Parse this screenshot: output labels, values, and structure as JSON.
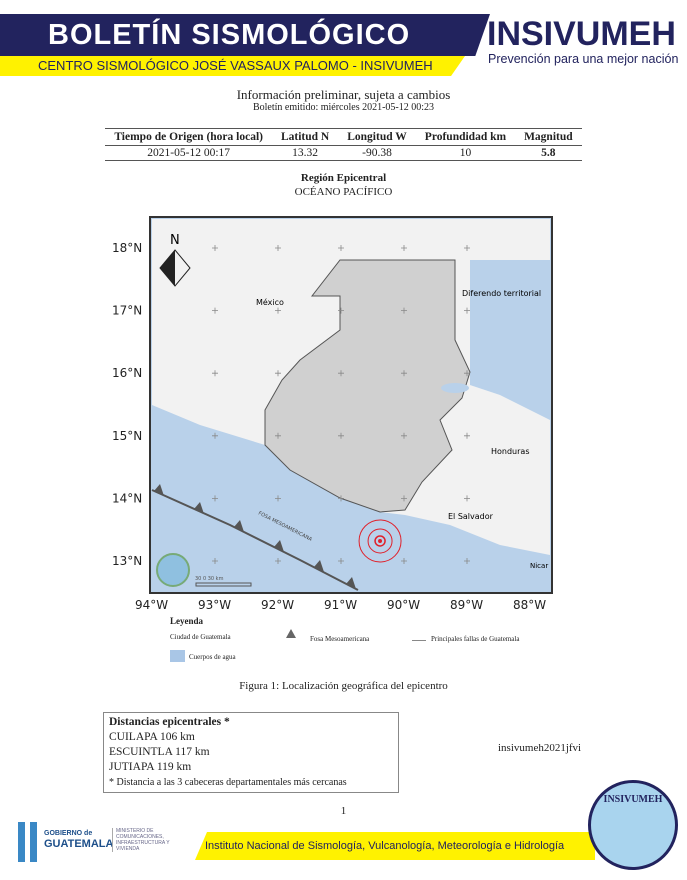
{
  "header": {
    "title": "BOLETÍN SISMOLÓGICO",
    "subtitle": "CENTRO SISMOLÓGICO JOSÉ VASSAUX PALOMO - INSIVUMEH",
    "brand": "INSIVUMEH",
    "tagline": "Prevención para una mejor nación"
  },
  "info": {
    "notice": "Información preliminar, sujeta a cambios",
    "issued": "Boletín emitido:  miércoles 2021-05-12 00:23"
  },
  "table": {
    "headers": [
      "Tiempo de Origen (hora local)",
      "Latitud N",
      "Longitud W",
      "Profundidad km",
      "Magnitud"
    ],
    "row": [
      "2021-05-12 00:17",
      "13.32",
      "-90.38",
      "10",
      "5.8"
    ]
  },
  "region": {
    "label": "Región Epicentral",
    "value": "OCÉANO PACÍFICO"
  },
  "map": {
    "lat_ticks": [
      "18°N",
      "17°N",
      "16°N",
      "15°N",
      "14°N",
      "13°N"
    ],
    "lon_ticks": [
      "94°W",
      "93°W",
      "92°W",
      "91°W",
      "90°W",
      "89°W",
      "88°W"
    ],
    "labels": {
      "north": "N",
      "mexico": "México",
      "diferendo": "Diferendo territorial",
      "honduras": "Honduras",
      "salvador": "El Salvador",
      "nicaragua": "Nicar",
      "trench": "FOSA MESOAMERICANA",
      "scale": "30     0     30 km"
    },
    "epicenter": {
      "lat": 13.32,
      "lon": -90.38
    },
    "colors": {
      "water": "#b9d1ea",
      "land": "#d0d0d0",
      "epicenter": "#e0202a"
    }
  },
  "legend": {
    "title": "Leyenda",
    "city": "Ciudad de Guatemala",
    "trench": "Fosa Mesoamericana",
    "faults": "Principales fallas de Guatemala",
    "water": "Cuerpos de agua"
  },
  "figure_caption": "Figura 1: Localización geográfica del epicentro",
  "distances": {
    "title": "Distancias epicentrales *",
    "items": [
      "CUILAPA 106 km",
      "ESCUINTLA 117 km",
      "JUTIAPA 119 km"
    ],
    "note": "* Distancia a las 3 cabeceras departamentales más cercanas"
  },
  "code": "insivumeh2021jfvi",
  "page_number": "1",
  "footer": {
    "gov1": "GOBIERNO de",
    "gov2": "GUATEMALA",
    "ministry": "MINISTERIO DE COMUNICACIONES, INFRAESTRUCTURA Y VIVIENDA",
    "institute": "Instituto Nacional de Sismología, Vulcanología, Meteorología e Hidrología",
    "seal": "INSIVUMEH"
  }
}
